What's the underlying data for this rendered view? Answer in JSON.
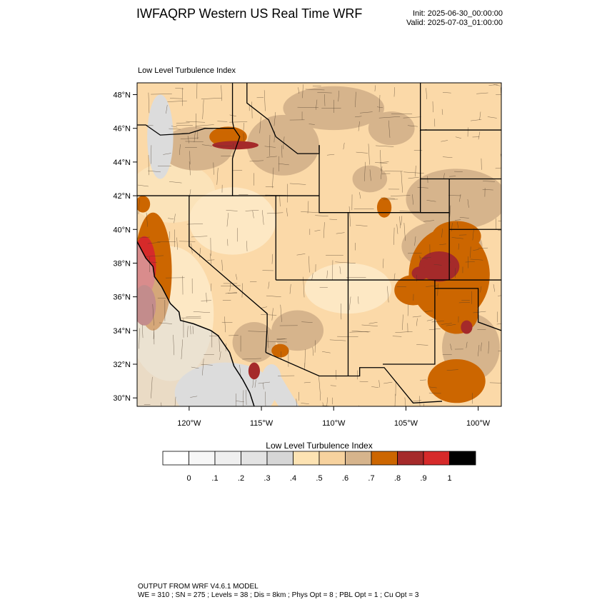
{
  "header": {
    "title": "IWFAQRP Western US Real Time WRF",
    "init": "Init: 2025-06-30_00:00:00",
    "valid": "Valid: 2025-07-03_01:00:00",
    "field_title": "Low Level Turbulence Index"
  },
  "map": {
    "extent": {
      "lon_min": -123.6,
      "lon_max": -98.4,
      "lat_min": 29.5,
      "lat_max": 48.7
    },
    "lat_ticks": [
      {
        "value": 30,
        "label": "30°N"
      },
      {
        "value": 32,
        "label": "32°N"
      },
      {
        "value": 34,
        "label": "34°N"
      },
      {
        "value": 36,
        "label": "36°N"
      },
      {
        "value": 38,
        "label": "38°N"
      },
      {
        "value": 40,
        "label": "40°N"
      },
      {
        "value": 42,
        "label": "42°N"
      },
      {
        "value": 44,
        "label": "44°N"
      },
      {
        "value": 46,
        "label": "46°N"
      },
      {
        "value": 48,
        "label": "48°N"
      }
    ],
    "lon_ticks": [
      {
        "value": -120,
        "label": "120°W"
      },
      {
        "value": -115,
        "label": "115°W"
      },
      {
        "value": -110,
        "label": "110°W"
      },
      {
        "value": -105,
        "label": "105°W"
      },
      {
        "value": -100,
        "label": "100°W"
      }
    ],
    "background_color": "#fbd9a8",
    "regions": [
      {
        "lon": -121.2,
        "lat": 42.2,
        "rlon": 3.0,
        "rlat": 1.8,
        "color": "#fbe3b9"
      },
      {
        "lon": -117.0,
        "lat": 40.5,
        "rlon": 3.0,
        "rlat": 2.0,
        "color": "#fde8c4"
      },
      {
        "lon": -109.0,
        "lat": 36.5,
        "rlon": 3.0,
        "rlat": 1.5,
        "color": "#fde8c4"
      },
      {
        "lon": -113.5,
        "lat": 45.0,
        "rlon": 2.5,
        "rlat": 1.8,
        "color": "#d6b48c"
      },
      {
        "lon": -110.0,
        "lat": 47.2,
        "rlon": 3.5,
        "rlat": 1.3,
        "color": "#d6b48c"
      },
      {
        "lon": -106.0,
        "lat": 46.0,
        "rlon": 1.6,
        "rlat": 1.0,
        "color": "#d6b48c"
      },
      {
        "lon": -119.5,
        "lat": 44.8,
        "rlon": 2.5,
        "rlat": 1.3,
        "color": "#d6b48c"
      },
      {
        "lon": -101.5,
        "lat": 41.8,
        "rlon": 3.5,
        "rlat": 1.8,
        "color": "#d6b48c"
      },
      {
        "lon": -102.5,
        "lat": 39.0,
        "rlon": 2.8,
        "rlat": 1.5,
        "color": "#d6b48c"
      },
      {
        "lon": -100.5,
        "lat": 33.0,
        "rlon": 2.0,
        "rlat": 2.0,
        "color": "#d6b48c"
      },
      {
        "lon": -112.5,
        "lat": 34.0,
        "rlon": 1.8,
        "rlat": 1.2,
        "color": "#d6b48c"
      },
      {
        "lon": -115.5,
        "lat": 33.3,
        "rlon": 1.5,
        "rlat": 1.2,
        "color": "#d6b48c"
      },
      {
        "lon": -107.5,
        "lat": 43.0,
        "rlon": 1.2,
        "rlat": 0.8,
        "color": "#d6b48c"
      },
      {
        "lon": -122.0,
        "lat": 45.5,
        "rlon": 0.9,
        "rlat": 2.5,
        "color": "#dcdcdc"
      },
      {
        "lon": -121.3,
        "lat": 35.0,
        "rlon": 3.0,
        "rlat": 4.0,
        "color": "#fde8c4"
      },
      {
        "lon": -117.5,
        "lat": 30.3,
        "rlon": 3.5,
        "rlat": 1.8,
        "color": "#dcdcdc"
      },
      {
        "lon": -114.3,
        "lat": 31.0,
        "rlon": 0.7,
        "rlat": 1.0,
        "color": "#dcdcdc"
      },
      {
        "lon": -102.0,
        "lat": 37.3,
        "rlon": 2.8,
        "rlat": 2.8,
        "color": "#cc6600"
      },
      {
        "lon": -104.5,
        "lat": 36.4,
        "rlon": 1.3,
        "rlat": 0.9,
        "color": "#cc6600"
      },
      {
        "lon": -101.5,
        "lat": 39.6,
        "rlon": 1.7,
        "rlat": 0.9,
        "color": "#cc6600"
      },
      {
        "lon": -101.5,
        "lat": 35.0,
        "rlon": 1.5,
        "rlat": 1.2,
        "color": "#cc6600"
      },
      {
        "lon": -101.5,
        "lat": 31.0,
        "rlon": 2.0,
        "rlat": 1.3,
        "color": "#cc6600"
      },
      {
        "lon": -102.7,
        "lat": 37.8,
        "rlon": 1.4,
        "rlat": 0.9,
        "color": "#a52a2a"
      },
      {
        "lon": -104.0,
        "lat": 37.4,
        "rlon": 0.6,
        "rlat": 0.4,
        "color": "#a52a2a"
      },
      {
        "lon": -100.8,
        "lat": 34.2,
        "rlon": 0.4,
        "rlat": 0.4,
        "color": "#a52a2a"
      },
      {
        "lon": -117.3,
        "lat": 45.5,
        "rlon": 1.3,
        "rlat": 0.6,
        "color": "#cc6600"
      },
      {
        "lon": -116.8,
        "lat": 45.0,
        "rlon": 1.6,
        "rlat": 0.25,
        "color": "#a52a2a"
      },
      {
        "lon": -106.5,
        "lat": 41.3,
        "rlon": 0.5,
        "rlat": 0.6,
        "color": "#cc6600"
      },
      {
        "lon": -113.7,
        "lat": 32.8,
        "rlon": 0.6,
        "rlat": 0.4,
        "color": "#cc6600"
      },
      {
        "lon": -115.5,
        "lat": 31.6,
        "rlon": 0.4,
        "rlat": 0.5,
        "color": "#a52a2a"
      },
      {
        "lon": -123.2,
        "lat": 41.5,
        "rlon": 0.5,
        "rlat": 0.5,
        "color": "#cc6600"
      },
      {
        "lon": -122.5,
        "lat": 37.5,
        "rlon": 1.3,
        "rlat": 3.5,
        "color": "#cc6600"
      },
      {
        "lon": -123.1,
        "lat": 37.8,
        "rlon": 0.8,
        "rlat": 1.8,
        "color": "#d62a2a"
      },
      {
        "lon": -123.1,
        "lat": 35.5,
        "rlon": 0.8,
        "rlat": 1.2,
        "color": "#a52a2a"
      }
    ],
    "state_borders": [
      [
        [
          -124.2,
          46.2
        ],
        [
          -123.0,
          46.2
        ],
        [
          -122.0,
          45.6
        ],
        [
          -120.0,
          45.7
        ],
        [
          -118.9,
          46.0
        ],
        [
          -116.9,
          46.0
        ]
      ],
      [
        [
          -116.9,
          46.0
        ],
        [
          -116.5,
          45.5
        ],
        [
          -116.9,
          44.5
        ],
        [
          -117.0,
          44.2
        ],
        [
          -117.0,
          42.0
        ]
      ],
      [
        [
          -124.3,
          42.0
        ],
        [
          -111.0,
          42.0
        ]
      ],
      [
        [
          -120.0,
          42.0
        ],
        [
          -120.0,
          39.0
        ],
        [
          -114.6,
          35.0
        ],
        [
          -114.6,
          34.3
        ],
        [
          -114.7,
          32.7
        ]
      ],
      [
        [
          -117.0,
          49.0
        ],
        [
          -117.0,
          46.4
        ],
        [
          -116.9,
          46.0
        ]
      ],
      [
        [
          -114.0,
          42.0
        ],
        [
          -114.0,
          37.0
        ]
      ],
      [
        [
          -114.0,
          37.0
        ],
        [
          -109.0,
          37.0
        ],
        [
          -103.0,
          37.0
        ]
      ],
      [
        [
          -111.0,
          45.0
        ],
        [
          -111.0,
          41.0
        ],
        [
          -109.0,
          41.0
        ],
        [
          -102.0,
          41.0
        ]
      ],
      [
        [
          -111.0,
          45.0
        ],
        [
          -111.0,
          44.5
        ],
        [
          -112.5,
          44.5
        ],
        [
          -114.0,
          45.5
        ],
        [
          -114.5,
          46.5
        ],
        [
          -116.0,
          47.5
        ],
        [
          -116.0,
          49.0
        ]
      ],
      [
        [
          -104.0,
          49.0
        ],
        [
          -104.0,
          41.0
        ]
      ],
      [
        [
          -109.0,
          41.0
        ],
        [
          -109.0,
          31.3
        ]
      ],
      [
        [
          -114.7,
          32.7
        ],
        [
          -111.0,
          31.3
        ],
        [
          -108.2,
          31.3
        ],
        [
          -108.2,
          31.8
        ],
        [
          -106.5,
          31.8
        ],
        [
          -104.5,
          29.7
        ],
        [
          -102.5,
          29.8
        ]
      ],
      [
        [
          -103.0,
          37.0
        ],
        [
          -103.0,
          32.0
        ],
        [
          -106.6,
          32.0
        ]
      ],
      [
        [
          -102.0,
          41.0
        ],
        [
          -102.0,
          37.0
        ]
      ],
      [
        [
          -104.0,
          45.9
        ],
        [
          -98.4,
          45.9
        ]
      ],
      [
        [
          -104.0,
          43.0
        ],
        [
          -98.4,
          43.0
        ]
      ],
      [
        [
          -102.0,
          40.0
        ],
        [
          -98.4,
          40.0
        ]
      ],
      [
        [
          -103.0,
          36.5
        ],
        [
          -100.0,
          36.5
        ],
        [
          -100.0,
          34.5
        ],
        [
          -98.4,
          34.0
        ]
      ],
      [
        [
          -103.0,
          37.0
        ],
        [
          -98.4,
          37.0
        ]
      ],
      [
        [
          -104.0,
          41.0
        ],
        [
          -102.0,
          41.0
        ],
        [
          -102.0,
          43.0
        ]
      ]
    ],
    "county_seed": 7,
    "county_count": 420
  },
  "colorbar": {
    "title": "Low Level Turbulence Index",
    "colors": [
      "#ffffff",
      "#f7f7f7",
      "#efefef",
      "#e3e3e3",
      "#d6d6d6",
      "#fde3b3",
      "#f7d29e",
      "#d6b48c",
      "#cc6600",
      "#a52a2a",
      "#d62a2a",
      "#000000"
    ],
    "labels": [
      "0",
      ".1",
      ".2",
      ".3",
      ".4",
      ".5",
      ".6",
      ".7",
      ".8",
      ".9",
      "1"
    ]
  },
  "footer": {
    "line1": "OUTPUT FROM WRF V4.6.1 MODEL",
    "line2": "WE = 310 ; SN = 275 ; Levels = 38 ; Dis = 8km ; Phys Opt = 8 ; PBL Opt = 1 ; Cu Opt = 3"
  }
}
